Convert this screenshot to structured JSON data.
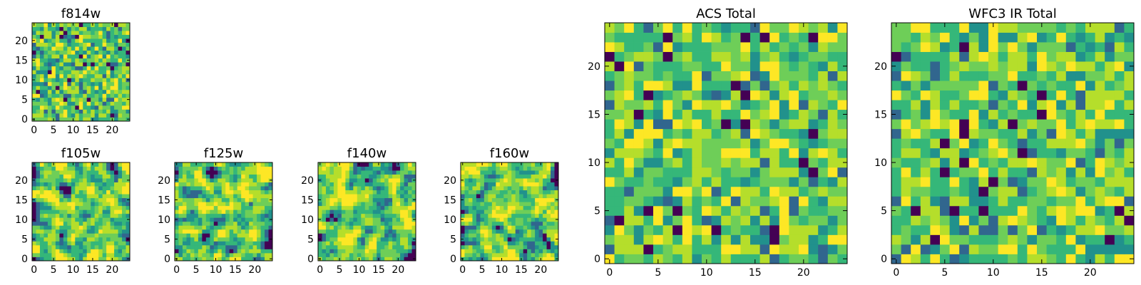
{
  "chart_data": [
    {
      "id": "f814w",
      "type": "heatmap",
      "title": "f814w",
      "grid": [
        25,
        25
      ],
      "xlim": [
        -0.5,
        24.5
      ],
      "ylim": [
        -0.5,
        24.5
      ],
      "xticks": [
        "0",
        "5",
        "10",
        "15",
        "20"
      ],
      "yticks": [
        "0",
        "5",
        "10",
        "15",
        "20"
      ],
      "pixels": "random-noise",
      "seed": 11
    },
    {
      "id": "f105w",
      "type": "heatmap",
      "title": "f105w",
      "grid": [
        25,
        25
      ],
      "xlim": [
        -0.5,
        24.5
      ],
      "ylim": [
        -0.5,
        24.5
      ],
      "xticks": [
        "0",
        "5",
        "10",
        "15",
        "20"
      ],
      "yticks": [
        "0",
        "5",
        "10",
        "15",
        "20"
      ],
      "pixels": "smooth-noise",
      "seed": 23
    },
    {
      "id": "f125w",
      "type": "heatmap",
      "title": "f125w",
      "grid": [
        25,
        25
      ],
      "xlim": [
        -0.5,
        24.5
      ],
      "ylim": [
        -0.5,
        24.5
      ],
      "xticks": [
        "0",
        "5",
        "10",
        "15",
        "20"
      ],
      "yticks": [
        "0",
        "5",
        "10",
        "15",
        "20"
      ],
      "pixels": "smooth-noise",
      "seed": 37
    },
    {
      "id": "f140w",
      "type": "heatmap",
      "title": "f140w",
      "grid": [
        25,
        25
      ],
      "xlim": [
        -0.5,
        24.5
      ],
      "ylim": [
        -0.5,
        24.5
      ],
      "xticks": [
        "0",
        "5",
        "10",
        "15",
        "20"
      ],
      "yticks": [
        "0",
        "5",
        "10",
        "15",
        "20"
      ],
      "pixels": "smooth-noise",
      "seed": 41
    },
    {
      "id": "f160w",
      "type": "heatmap",
      "title": "f160w",
      "grid": [
        25,
        25
      ],
      "xlim": [
        -0.5,
        24.5
      ],
      "ylim": [
        -0.5,
        24.5
      ],
      "xticks": [
        "0",
        "5",
        "10",
        "15",
        "20"
      ],
      "yticks": [
        "0",
        "5",
        "10",
        "15",
        "20"
      ],
      "pixels": "smooth-noise",
      "seed": 53
    },
    {
      "id": "acs-total",
      "type": "heatmap",
      "title": "ACS Total",
      "grid": [
        25,
        25
      ],
      "xlim": [
        -0.5,
        24.5
      ],
      "ylim": [
        -0.5,
        24.5
      ],
      "xticks": [
        "0",
        "5",
        "10",
        "15",
        "20"
      ],
      "yticks": [
        "0",
        "5",
        "10",
        "15",
        "20"
      ],
      "pixels": "random-noise",
      "seed": 67
    },
    {
      "id": "wfc3-ir-total",
      "type": "heatmap",
      "title": "WFC3 IR Total",
      "grid": [
        25,
        25
      ],
      "xlim": [
        -0.5,
        24.5
      ],
      "ylim": [
        -0.5,
        24.5
      ],
      "xticks": [
        "0",
        "5",
        "10",
        "15",
        "20"
      ],
      "yticks": [
        "0",
        "5",
        "10",
        "15",
        "20"
      ],
      "pixels": "random-noise",
      "seed": 79
    }
  ],
  "colormap": "viridis-like"
}
